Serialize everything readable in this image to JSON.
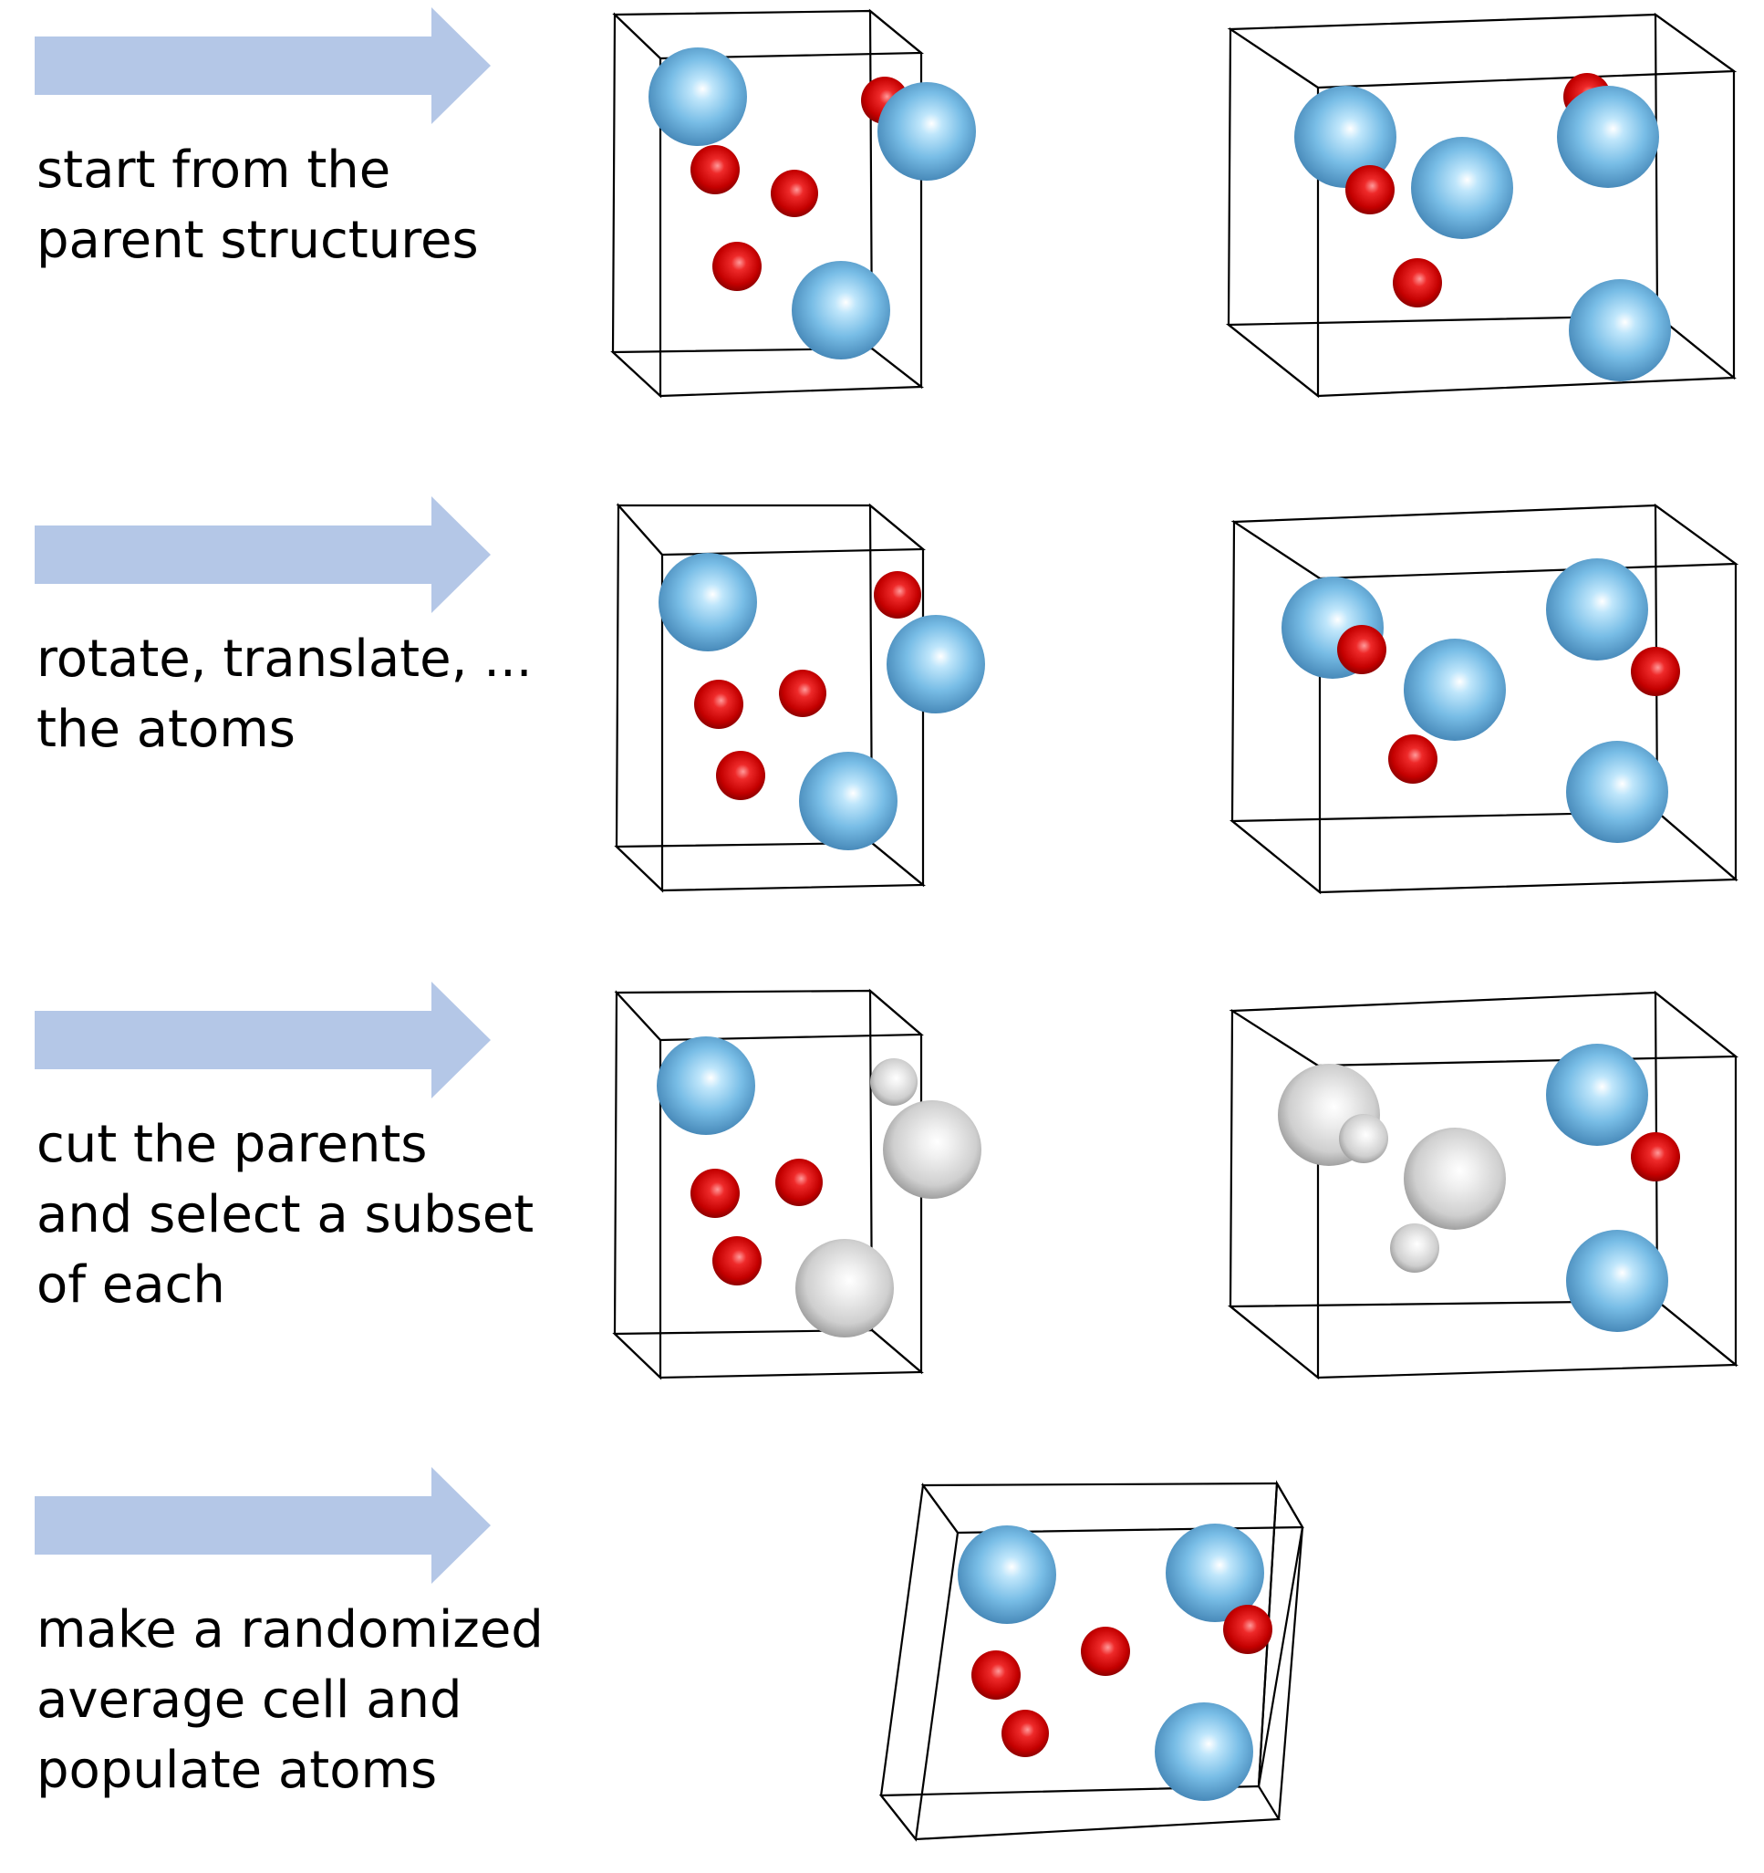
{
  "colors": {
    "arrow": "#b4c7e7",
    "cell_edge": "#000000",
    "large_atom": "#5ba3d6",
    "small_atom": "#dd1111",
    "removed_atom": "#c8c8c8"
  },
  "steps": [
    {
      "lines": [
        "start from the",
        "parent structures"
      ]
    },
    {
      "lines": [
        "rotate, translate, ...",
        "the atoms"
      ]
    },
    {
      "lines": [
        "cut the parents",
        "and select a subset",
        "of each"
      ]
    },
    {
      "lines": [
        "make a randomized",
        "average cell and",
        "populate atoms"
      ]
    }
  ]
}
